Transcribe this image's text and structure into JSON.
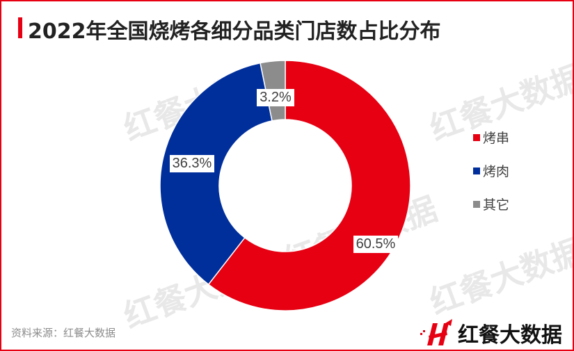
{
  "title": "2022年全国烧烤各细分品类门店数占比分布",
  "source": "资料来源：红餐大数据",
  "logo": {
    "text": "红餐大数据",
    "icon": "H-logo-icon"
  },
  "watermark": "红餐大数据",
  "colors": {
    "accent": "#e60012",
    "series": [
      "#e60012",
      "#002f9c",
      "#8c8c8c"
    ]
  },
  "chart_data": {
    "type": "pie",
    "subtype": "donut",
    "title": "2022年全国烧烤各细分品类门店数占比分布",
    "categories": [
      "烤串",
      "烤肉",
      "其它"
    ],
    "values": [
      60.5,
      36.3,
      3.2
    ],
    "labels": [
      "60.5%",
      "36.3%",
      "3.2%"
    ],
    "colors": [
      "#e60012",
      "#002f9c",
      "#8c8c8c"
    ],
    "legend_position": "right",
    "start_angle": "12 o'clock, clockwise"
  },
  "legend": [
    {
      "label": "烤串",
      "color": "#e60012"
    },
    {
      "label": "烤肉",
      "color": "#002f9c"
    },
    {
      "label": "其它",
      "color": "#8c8c8c"
    }
  ]
}
